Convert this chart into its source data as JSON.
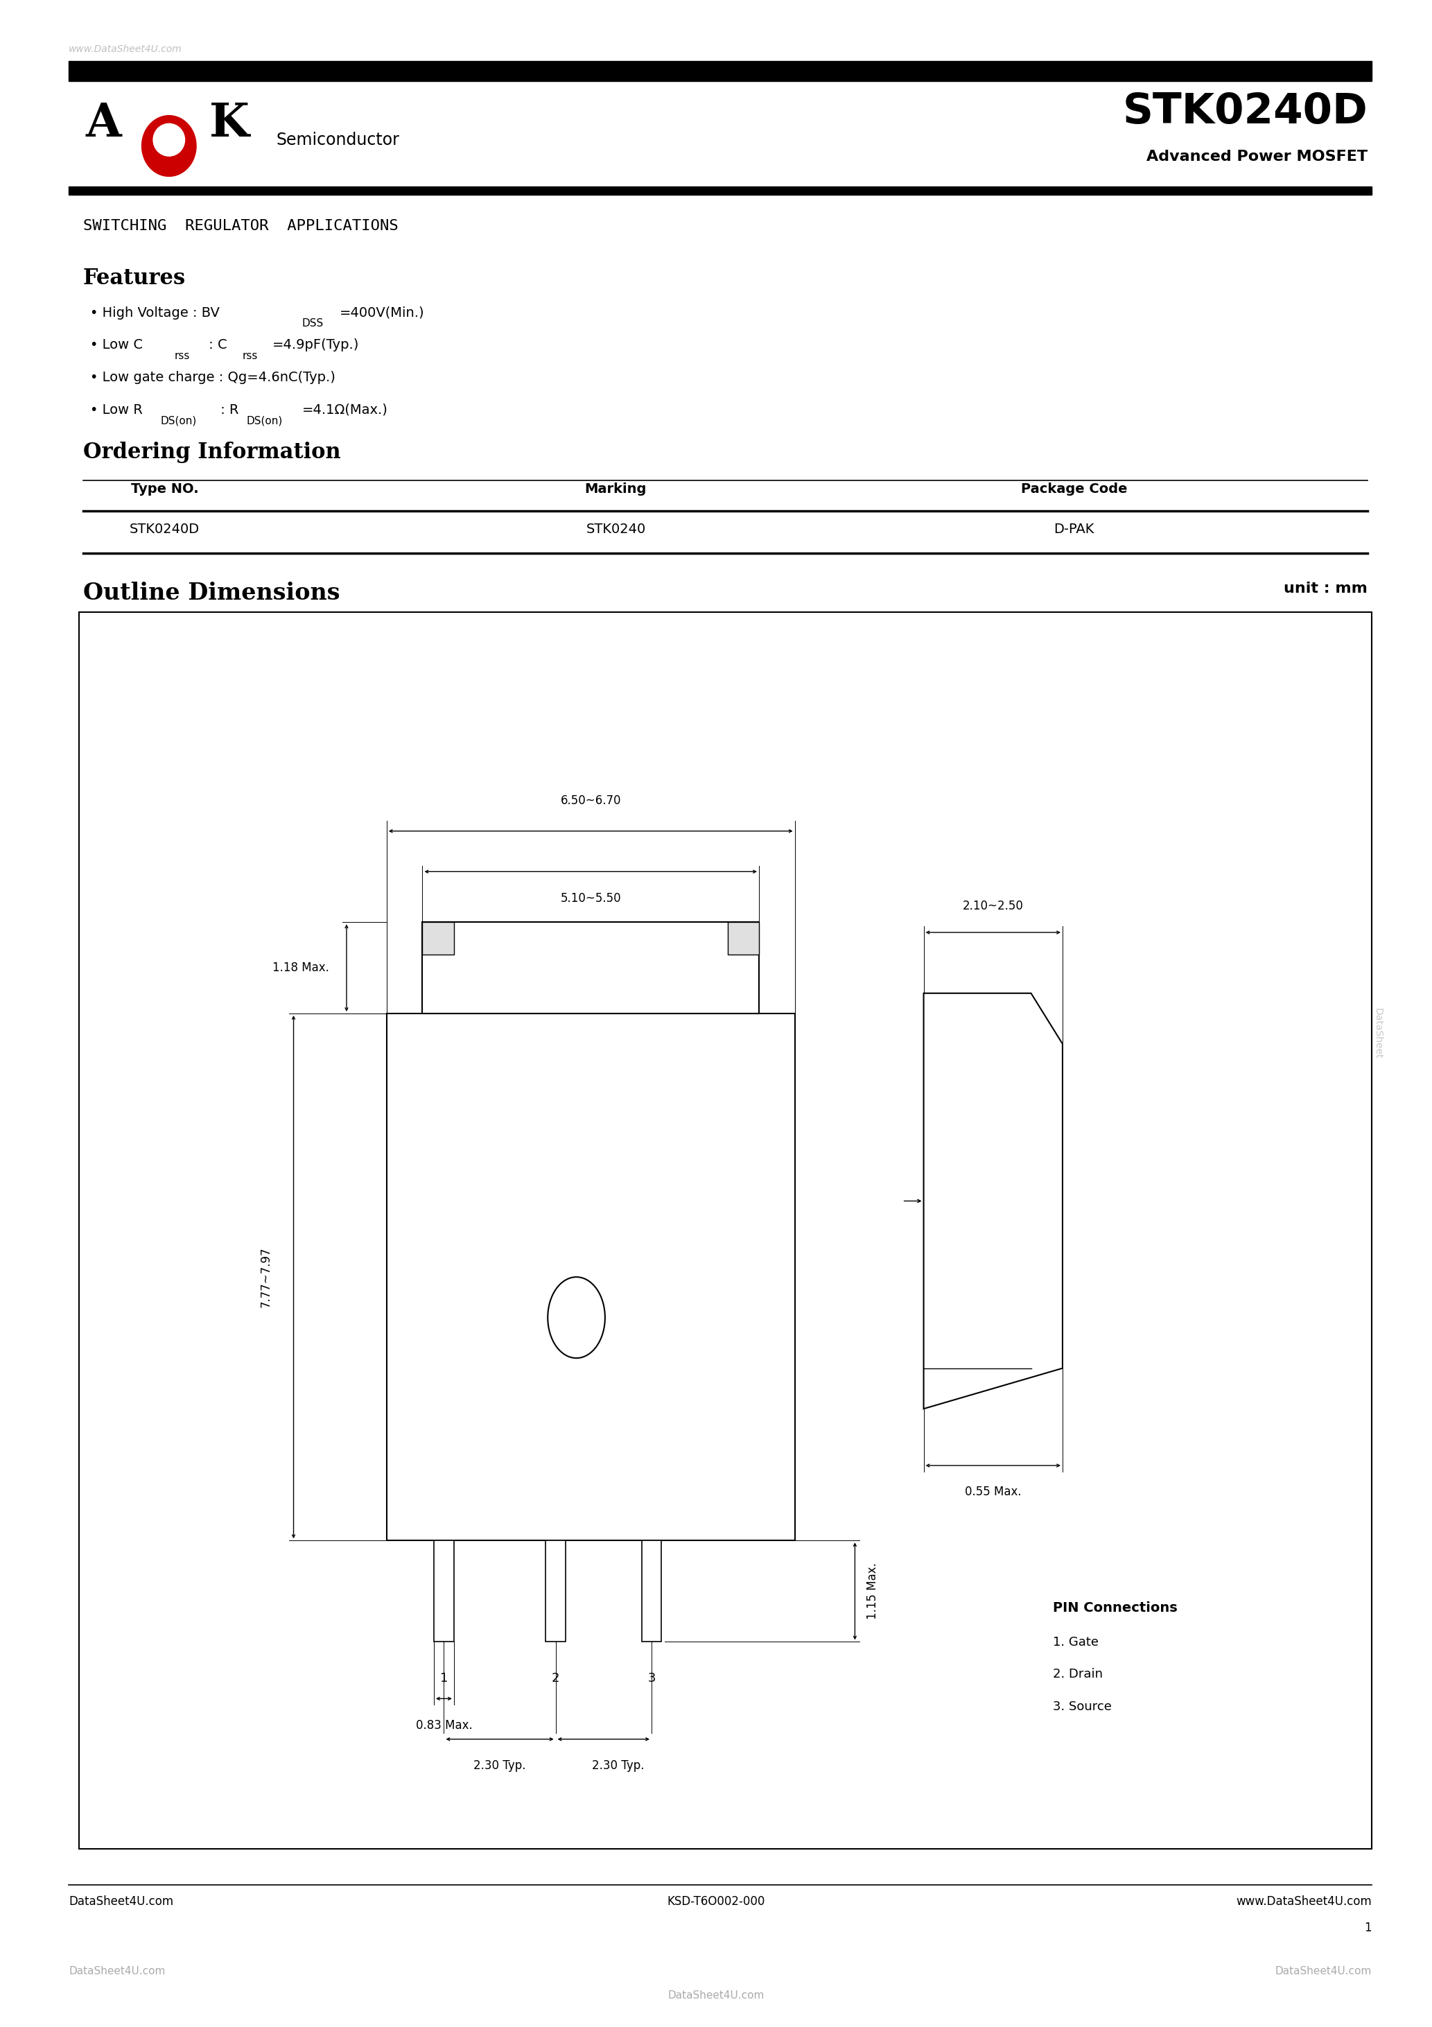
{
  "page_width": 20.66,
  "page_height": 29.24,
  "bg_color": "#ffffff",
  "watermark_text": "www.DataSheet4U.com",
  "watermark_color": "#cccccc",
  "top_bar_color": "#000000",
  "part_number": "STK0240D",
  "subtitle": "Advanced Power MOSFET",
  "logo_semi": "Semiconductor",
  "application": "SWITCHING  REGULATOR  APPLICATIONS",
  "features_title": "Features",
  "ordering_title": "Ordering Information",
  "table_headers": [
    "Type NO.",
    "Marking",
    "Package Code"
  ],
  "table_row": [
    "STK0240D",
    "STK0240",
    "D-PAK"
  ],
  "outline_title": "Outline Dimensions",
  "unit_text": "unit : mm",
  "footer_left": "DataSheet4U.com",
  "footer_right": "www.DataSheet4U.com",
  "footer_center": "KSD-T6O002-000",
  "footer_page": "1",
  "watermark_side": "DataSheet",
  "pin_title": "PIN Connections",
  "pin1": "1. Gate",
  "pin2": "2. Drain",
  "pin3": "3. Source"
}
